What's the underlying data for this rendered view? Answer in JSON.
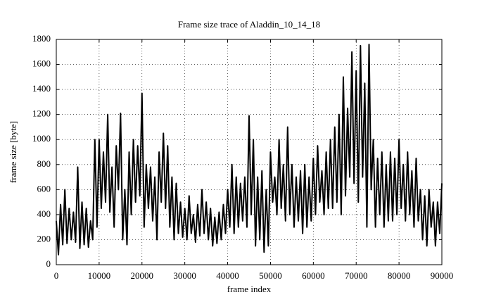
{
  "chart_data": {
    "type": "line",
    "title": "Frame size trace of Aladdin_10_14_18",
    "x_label": "frame index",
    "y_label": "frame size [byte]",
    "color": "#000000",
    "grid": true,
    "xlim": [
      0,
      90000
    ],
    "ylim": [
      0,
      1800
    ],
    "xticks": [
      0,
      10000,
      20000,
      30000,
      40000,
      50000,
      60000,
      70000,
      80000,
      90000
    ],
    "yticks": [
      0,
      200,
      400,
      600,
      800,
      1000,
      1200,
      1400,
      1600,
      1800
    ],
    "x": [
      0,
      500,
      1000,
      1500,
      2000,
      2500,
      3000,
      3500,
      4000,
      4500,
      5000,
      5500,
      6000,
      6500,
      7000,
      7500,
      8000,
      8500,
      9000,
      9500,
      10000,
      10500,
      11000,
      11500,
      12000,
      12500,
      13000,
      13500,
      14000,
      14500,
      15000,
      15500,
      16000,
      16500,
      17000,
      17500,
      18000,
      18500,
      19000,
      19500,
      20000,
      20500,
      21000,
      21500,
      22000,
      22500,
      23000,
      23500,
      24000,
      24500,
      25000,
      25500,
      26000,
      26500,
      27000,
      27500,
      28000,
      28500,
      29000,
      29500,
      30000,
      30500,
      31000,
      31500,
      32000,
      32500,
      33000,
      33500,
      34000,
      34500,
      35000,
      35500,
      36000,
      36500,
      37000,
      37500,
      38000,
      38500,
      39000,
      39500,
      40000,
      40500,
      41000,
      41500,
      42000,
      42500,
      43000,
      43500,
      44000,
      44500,
      45000,
      45500,
      46000,
      46500,
      47000,
      47500,
      48000,
      48500,
      49000,
      49500,
      50000,
      50500,
      51000,
      51500,
      52000,
      52500,
      53000,
      53500,
      54000,
      54500,
      55000,
      55500,
      56000,
      56500,
      57000,
      57500,
      58000,
      58500,
      59000,
      59500,
      60000,
      60500,
      61000,
      61500,
      62000,
      62500,
      63000,
      63500,
      64000,
      64500,
      65000,
      65500,
      66000,
      66500,
      67000,
      67500,
      68000,
      68500,
      69000,
      69500,
      70000,
      70500,
      71000,
      71500,
      72000,
      72500,
      73000,
      73500,
      74000,
      74500,
      75000,
      75500,
      76000,
      76500,
      77000,
      77500,
      78000,
      78500,
      79000,
      79500,
      80000,
      80500,
      81000,
      81500,
      82000,
      82500,
      83000,
      83500,
      84000,
      84500,
      85000,
      85500,
      86000,
      86500,
      87000,
      87500,
      88000,
      88500,
      89000,
      89500,
      90000
    ],
    "values": [
      350,
      80,
      480,
      160,
      600,
      170,
      450,
      200,
      420,
      180,
      780,
      130,
      500,
      160,
      450,
      140,
      350,
      200,
      1000,
      300,
      1000,
      450,
      900,
      500,
      1200,
      420,
      780,
      300,
      950,
      600,
      1210,
      200,
      600,
      160,
      900,
      400,
      1000,
      500,
      950,
      550,
      1370,
      300,
      800,
      450,
      780,
      350,
      700,
      200,
      900,
      500,
      1050,
      450,
      950,
      300,
      700,
      200,
      650,
      250,
      500,
      220,
      450,
      200,
      550,
      250,
      400,
      180,
      480,
      230,
      600,
      250,
      500,
      200,
      450,
      150,
      380,
      170,
      420,
      200,
      480,
      250,
      600,
      300,
      800,
      250,
      700,
      300,
      650,
      350,
      700,
      300,
      1190,
      400,
      1000,
      150,
      700,
      200,
      750,
      100,
      600,
      150,
      900,
      500,
      700,
      400,
      1000,
      450,
      800,
      350,
      1100,
      400,
      800,
      300,
      700,
      350,
      750,
      250,
      800,
      300,
      700,
      350,
      850,
      400,
      950,
      500,
      750,
      400,
      900,
      450,
      1000,
      450,
      1100,
      500,
      1200,
      400,
      1500,
      550,
      1250,
      700,
      1700,
      650,
      1550,
      500,
      1750,
      700,
      1450,
      300,
      1760,
      600,
      1000,
      300,
      850,
      400,
      900,
      300,
      800,
      350,
      900,
      350,
      850,
      400,
      1000,
      450,
      800,
      350,
      900,
      400,
      750,
      300,
      850,
      350,
      600,
      200,
      550,
      150,
      600,
      300,
      500,
      150,
      500,
      250,
      650
    ]
  }
}
